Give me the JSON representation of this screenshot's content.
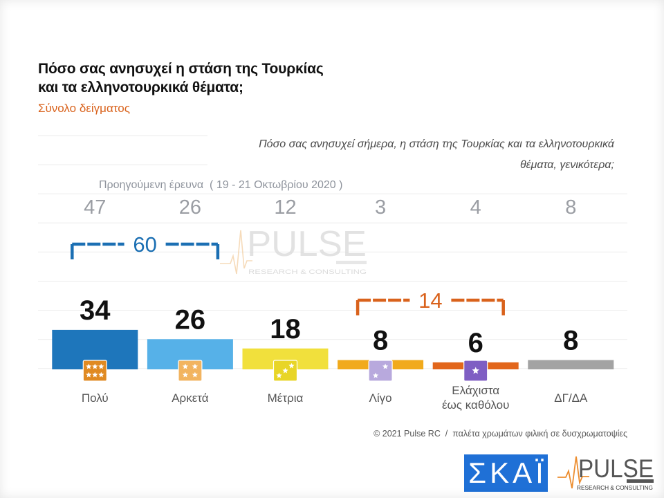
{
  "question": {
    "line1": "Πόσο σας ανησυχεί σήμερα, η στάση της Τουρκίας και τα ελληνοτουρκικά",
    "line2": "θέματα, γενικότερα;"
  },
  "footer": "© 2021 Pulse RC  /  παλέτα χρωμάτων φιλική σε δυσχρωματοψίες",
  "watermark": {
    "name": "PULSE",
    "tagline": "RESEARCH & CONSULTING"
  },
  "logos": {
    "skai": {
      "text": "ΣΚΑΪ",
      "color": "#1f70d6"
    },
    "pulse": {
      "name": "PULSE",
      "tagline": "RESEARCH & CONSULTING",
      "accent": "#ec8d2f"
    }
  },
  "colors": {
    "title": "#111111",
    "subtitle": "#d9621c",
    "label": "#555555",
    "previous": "#8e939c",
    "grid": "#ebebeb"
  },
  "chart_data": {
    "type": "bar",
    "title": "Πόσο σας ανησυχεί η στάση της Τουρκίας\nκαι τα ελληνοτουρκικά θέματα;",
    "subtitle": "Σύνολο δείγματος",
    "categories": [
      "Πολύ",
      "Αρκετά",
      "Μέτρια",
      "Λίγο",
      "Ελάχιστα\nέως καθόλου",
      "ΔΓ/ΔΑ"
    ],
    "series": [
      {
        "values": [
          34,
          26,
          18,
          8,
          6,
          8
        ]
      },
      {
        "name": "Προηγούμενη έρευνα  ( 19 - 21 Οκτωβρίου 2020 )",
        "values": [
          47,
          26,
          12,
          3,
          4,
          8
        ]
      }
    ],
    "bar_colors": [
      "#1e76bb",
      "#56b1e8",
      "#f1e03c",
      "#f1aa1c",
      "#e2661b",
      "#a3a3a3"
    ],
    "category_icons": [
      {
        "icon": "six-stars-icon",
        "color": "#e08a22",
        "stars": 6
      },
      {
        "icon": "four-stars-icon",
        "color": "#f2b460",
        "stars": 4
      },
      {
        "icon": "three-stars-icon",
        "color": "#e8d527",
        "stars": 3
      },
      {
        "icon": "two-stars-icon",
        "color": "#b8a9dd",
        "stars": 2
      },
      {
        "icon": "one-star-icon",
        "color": "#7f5ec3",
        "stars": 1
      },
      null
    ],
    "groups": [
      {
        "label": "60",
        "categories": [
          0,
          1
        ],
        "color": "#1b6fb3"
      },
      {
        "label": "14",
        "categories": [
          3,
          4
        ],
        "color": "#d9621c"
      }
    ],
    "grid": true
  }
}
